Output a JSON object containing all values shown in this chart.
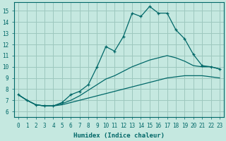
{
  "xlabel": "Humidex (Indice chaleur)",
  "ylabel": "",
  "xlim": [
    -0.5,
    23.5
  ],
  "ylim": [
    5.5,
    15.8
  ],
  "yticks": [
    6,
    7,
    8,
    9,
    10,
    11,
    12,
    13,
    14,
    15
  ],
  "xticks": [
    0,
    1,
    2,
    3,
    4,
    5,
    6,
    7,
    8,
    9,
    10,
    11,
    12,
    13,
    14,
    15,
    16,
    17,
    18,
    19,
    20,
    21,
    22,
    23
  ],
  "bg_color": "#c5e8e0",
  "grid_color": "#9dc8be",
  "line_color": "#006868",
  "curve1_x": [
    0,
    1,
    2,
    3,
    4,
    5,
    6,
    7,
    8,
    9,
    10,
    11,
    12,
    13,
    14,
    15,
    16,
    17,
    18,
    19,
    20,
    21,
    22,
    23
  ],
  "curve1_y": [
    7.5,
    7.0,
    6.6,
    6.5,
    6.5,
    6.8,
    7.5,
    7.8,
    8.4,
    10.0,
    11.8,
    11.4,
    12.7,
    14.8,
    14.5,
    15.4,
    14.8,
    14.8,
    13.3,
    12.5,
    11.1,
    10.1,
    10.0,
    9.8
  ],
  "curve2_x": [
    0,
    1,
    2,
    3,
    4,
    5,
    6,
    7,
    8,
    9,
    10,
    11,
    12,
    13,
    14,
    15,
    16,
    17,
    18,
    19,
    20,
    21,
    22,
    23
  ],
  "curve2_y": [
    7.5,
    7.0,
    6.6,
    6.5,
    6.5,
    6.7,
    7.0,
    7.4,
    7.9,
    8.4,
    8.9,
    9.2,
    9.6,
    10.0,
    10.3,
    10.6,
    10.8,
    11.0,
    10.8,
    10.5,
    10.1,
    10.0,
    10.0,
    9.8
  ],
  "curve3_x": [
    0,
    1,
    2,
    3,
    4,
    5,
    6,
    7,
    8,
    9,
    10,
    11,
    12,
    13,
    14,
    15,
    16,
    17,
    18,
    19,
    20,
    21,
    22,
    23
  ],
  "curve3_y": [
    7.5,
    7.0,
    6.6,
    6.5,
    6.5,
    6.6,
    6.8,
    7.0,
    7.2,
    7.4,
    7.6,
    7.8,
    8.0,
    8.2,
    8.4,
    8.6,
    8.8,
    9.0,
    9.1,
    9.2,
    9.2,
    9.2,
    9.1,
    9.0
  ]
}
